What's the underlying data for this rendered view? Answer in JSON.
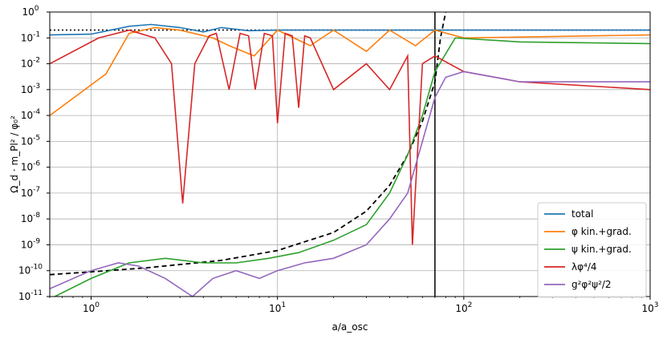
{
  "chart_data": {
    "type": "line",
    "xlabel": "a/a_osc",
    "ylabel": "Ω_d · m_Pl² / φ₀²",
    "xscale": "log",
    "yscale": "log",
    "xlim": [
      0.6,
      1000
    ],
    "ylim": [
      1e-11,
      1
    ],
    "x_ticks": [
      {
        "value": 1,
        "base": "10",
        "exp": "0"
      },
      {
        "value": 10,
        "base": "10",
        "exp": "1"
      },
      {
        "value": 100,
        "base": "10",
        "exp": "2"
      },
      {
        "value": 1000,
        "base": "10",
        "exp": "3"
      }
    ],
    "y_ticks": [
      {
        "value": 1,
        "base": "10",
        "exp": "0"
      },
      {
        "value": 0.1,
        "base": "10",
        "exp": "-1"
      },
      {
        "value": 0.01,
        "base": "10",
        "exp": "-2"
      },
      {
        "value": 0.001,
        "base": "10",
        "exp": "-3"
      },
      {
        "value": 0.0001,
        "base": "10",
        "exp": "-4"
      },
      {
        "value": 1e-05,
        "base": "10",
        "exp": "-5"
      },
      {
        "value": 1e-06,
        "base": "10",
        "exp": "-6"
      },
      {
        "value": 1e-07,
        "base": "10",
        "exp": "-7"
      },
      {
        "value": 1e-08,
        "base": "10",
        "exp": "-8"
      },
      {
        "value": 1e-09,
        "base": "10",
        "exp": "-9"
      },
      {
        "value": 1e-10,
        "base": "10",
        "exp": "-10"
      },
      {
        "value": 1e-11,
        "base": "10",
        "exp": "-11"
      }
    ],
    "grid": true,
    "legend_position": "bottom-right",
    "reference_lines": {
      "horizontal_dotted_y": 0.2,
      "vertical_solid_x": 70,
      "dashed_curve": {
        "x": [
          0.6,
          1,
          2,
          5,
          10,
          20,
          30,
          40,
          50,
          60,
          70,
          75,
          80
        ],
        "y": [
          7e-11,
          9e-11,
          1.3e-10,
          2.5e-10,
          6e-10,
          3e-09,
          2e-08,
          2e-07,
          3e-06,
          6e-05,
          0.002,
          0.1,
          1
        ]
      }
    },
    "series": [
      {
        "name": "total",
        "color": "#1f77b4",
        "x": [
          0.6,
          1,
          1.6,
          2.1,
          3,
          4,
          5,
          7,
          10,
          30,
          70,
          100,
          1000
        ],
        "y": [
          0.13,
          0.14,
          0.28,
          0.33,
          0.25,
          0.17,
          0.25,
          0.19,
          0.2,
          0.2,
          0.2,
          0.2,
          0.2
        ]
      },
      {
        "name": "φ kin.+grad.",
        "color": "#ff7f0e",
        "x": [
          0.6,
          1.2,
          1.6,
          2.2,
          3,
          4.5,
          5.5,
          7.5,
          10,
          15,
          20,
          30,
          40,
          55,
          70,
          100,
          1000
        ],
        "y": [
          0.0001,
          0.004,
          0.15,
          0.25,
          0.2,
          0.1,
          0.05,
          0.02,
          0.2,
          0.05,
          0.2,
          0.03,
          0.2,
          0.05,
          0.2,
          0.1,
          0.13
        ]
      },
      {
        "name": "ψ kin.+grad.",
        "color": "#2ca02c",
        "x": [
          0.6,
          1,
          1.6,
          2.5,
          4,
          6,
          9,
          13,
          20,
          30,
          40,
          50,
          60,
          70,
          90,
          200,
          1000
        ],
        "y": [
          8e-12,
          5e-11,
          2e-10,
          3e-10,
          2e-10,
          2e-10,
          3e-10,
          5e-10,
          1.5e-09,
          6e-09,
          1e-07,
          3e-06,
          0.0001,
          0.005,
          0.1,
          0.07,
          0.06
        ]
      },
      {
        "name": "λφ⁴/4",
        "color": "#d62728",
        "x": [
          0.6,
          1.1,
          1.6,
          2.2,
          2.7,
          3.1,
          3.6,
          4.3,
          4.7,
          5.5,
          6.3,
          7,
          7.6,
          8.5,
          9.4,
          10,
          11,
          12,
          13,
          14,
          15,
          20,
          30,
          40,
          50,
          53,
          60,
          70,
          100,
          200,
          1000
        ],
        "y": [
          0.01,
          0.1,
          0.2,
          0.1,
          0.01,
          4e-08,
          0.01,
          0.12,
          0.15,
          0.001,
          0.15,
          0.12,
          0.001,
          0.15,
          0.12,
          5e-05,
          0.15,
          0.12,
          0.0002,
          0.12,
          0.1,
          0.001,
          0.01,
          0.001,
          0.02,
          1e-09,
          0.01,
          0.02,
          0.005,
          0.002,
          0.001
        ]
      },
      {
        "name": "g²φ²ψ²/2",
        "color": "#9467bd",
        "x": [
          0.6,
          1,
          1.4,
          1.8,
          2.5,
          3.5,
          4.5,
          6,
          8,
          10,
          14,
          20,
          30,
          40,
          50,
          60,
          70,
          80,
          100,
          200,
          1000
        ],
        "y": [
          2e-11,
          1e-10,
          2e-10,
          1.5e-10,
          5e-11,
          1e-11,
          5e-11,
          1e-10,
          5e-11,
          1e-10,
          2e-10,
          3e-10,
          1e-09,
          1e-08,
          1e-07,
          1e-05,
          0.0005,
          0.003,
          0.005,
          0.002,
          0.002
        ]
      }
    ],
    "legend": [
      {
        "label": "total",
        "color": "#1f77b4"
      },
      {
        "label": "φ kin.+grad.",
        "color": "#ff7f0e"
      },
      {
        "label": "ψ kin.+grad.",
        "color": "#2ca02c"
      },
      {
        "label": "λφ⁴/4",
        "color": "#d62728"
      },
      {
        "label": "g²φ²ψ²/2",
        "color": "#9467bd"
      }
    ]
  }
}
